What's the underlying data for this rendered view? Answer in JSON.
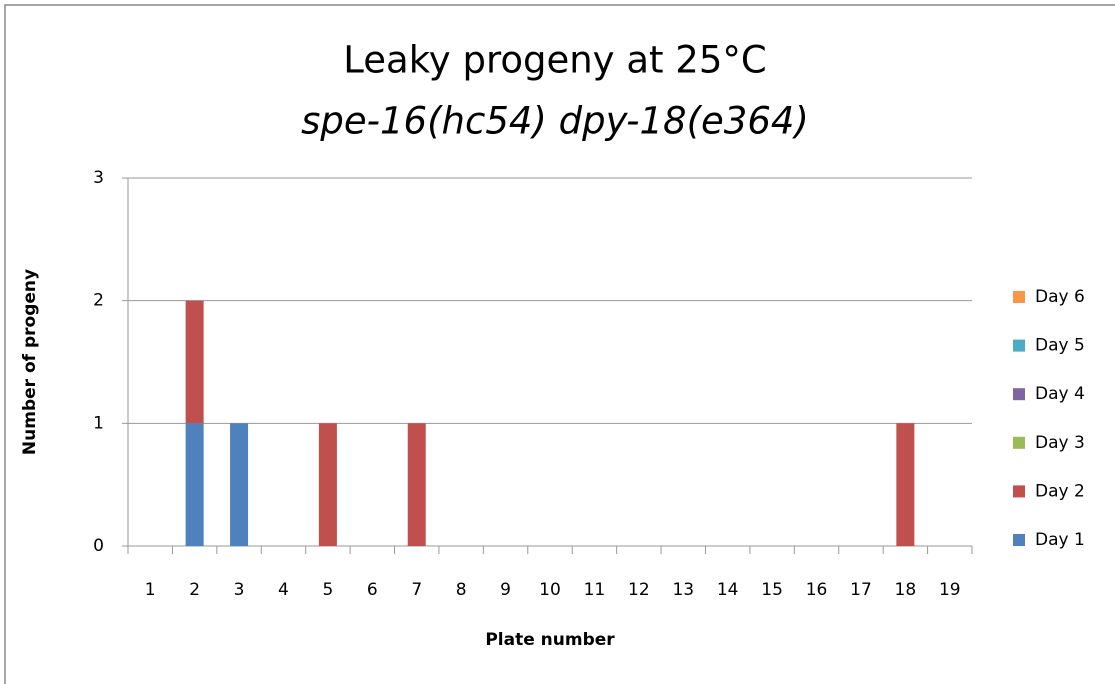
{
  "chart_data": {
    "type": "stacked_bar",
    "title": "Leaky progeny at 25°C",
    "subtitle": "spe-16(hc54) dpy-18(e364)",
    "x_label": "Plate number",
    "y_label": "Number of progeny",
    "categories": [
      "1",
      "2",
      "3",
      "4",
      "5",
      "6",
      "7",
      "8",
      "9",
      "10",
      "11",
      "12",
      "13",
      "14",
      "15",
      "16",
      "17",
      "18",
      "19"
    ],
    "series": [
      {
        "name": "Day 1",
        "color": "#4f81bd",
        "values": [
          0,
          1,
          1,
          0,
          0,
          0,
          0,
          0,
          0,
          0,
          0,
          0,
          0,
          0,
          0,
          0,
          0,
          0,
          0
        ]
      },
      {
        "name": "Day 2",
        "color": "#c0504d",
        "values": [
          0,
          1,
          0,
          0,
          1,
          0,
          1,
          0,
          0,
          0,
          0,
          0,
          0,
          0,
          0,
          0,
          0,
          1,
          0
        ]
      },
      {
        "name": "Day 3",
        "color": "#9bbb59",
        "values": [
          0,
          0,
          0,
          0,
          0,
          0,
          0,
          0,
          0,
          0,
          0,
          0,
          0,
          0,
          0,
          0,
          0,
          0,
          0
        ]
      },
      {
        "name": "Day 4",
        "color": "#8064a2",
        "values": [
          0,
          0,
          0,
          0,
          0,
          0,
          0,
          0,
          0,
          0,
          0,
          0,
          0,
          0,
          0,
          0,
          0,
          0,
          0
        ]
      },
      {
        "name": "Day 5",
        "color": "#4bacc6",
        "values": [
          0,
          0,
          0,
          0,
          0,
          0,
          0,
          0,
          0,
          0,
          0,
          0,
          0,
          0,
          0,
          0,
          0,
          0,
          0
        ]
      },
      {
        "name": "Day 6",
        "color": "#f79646",
        "values": [
          0,
          0,
          0,
          0,
          0,
          0,
          0,
          0,
          0,
          0,
          0,
          0,
          0,
          0,
          0,
          0,
          0,
          0,
          0
        ]
      }
    ],
    "ylim": [
      0,
      3
    ],
    "yticks": [
      0,
      1,
      2,
      3
    ],
    "grid": true,
    "legend": "right"
  }
}
